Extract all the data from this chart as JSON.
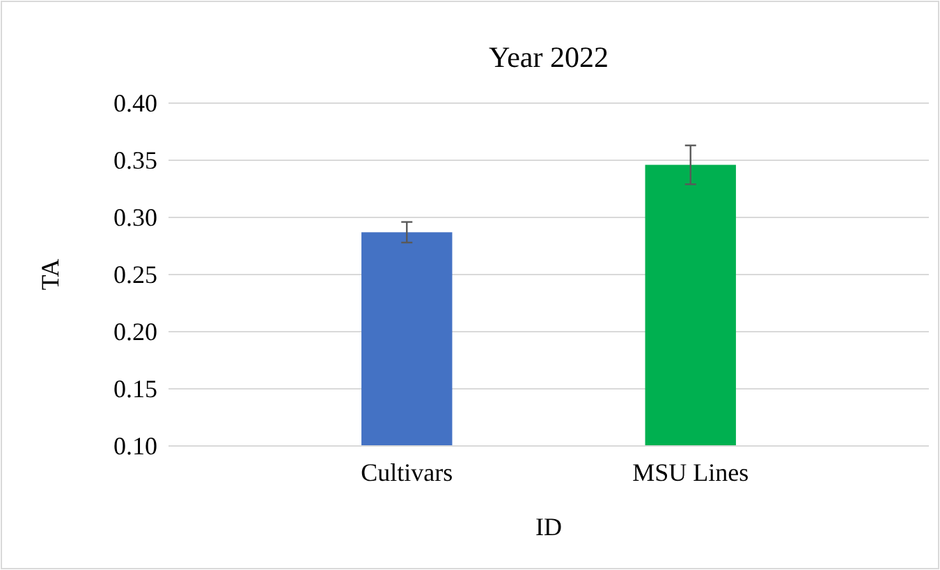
{
  "chart_data": {
    "type": "bar",
    "title": "Year 2022",
    "xlabel": "ID",
    "ylabel": "TA",
    "categories": [
      "Cultivars",
      "MSU Lines"
    ],
    "values": [
      0.287,
      0.346
    ],
    "colors": [
      "#4472c4",
      "#00b050"
    ],
    "errors": [
      0.009,
      0.017
    ],
    "ylim": [
      0.1,
      0.4
    ],
    "yticks": [
      {
        "value": 0.1,
        "label": "0.10"
      },
      {
        "value": 0.15,
        "label": "0.15"
      },
      {
        "value": 0.2,
        "label": "0.20"
      },
      {
        "value": 0.25,
        "label": "0.25"
      },
      {
        "value": 0.3,
        "label": "0.30"
      },
      {
        "value": 0.35,
        "label": "0.35"
      },
      {
        "value": 0.4,
        "label": "0.40"
      }
    ],
    "grid": "y"
  }
}
